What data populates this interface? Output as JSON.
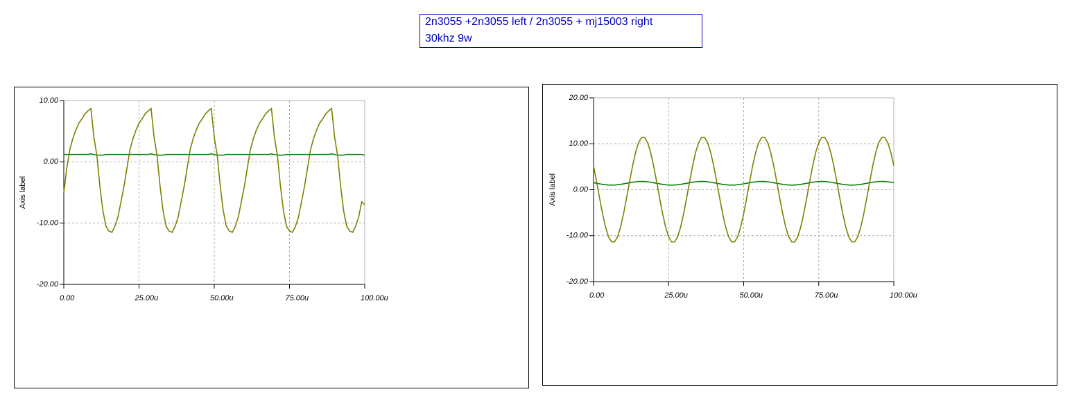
{
  "header": {
    "lines": [
      "2n3055 +2n3055 left / 2n3055 + mj15003 right",
      "30khz 9w"
    ]
  },
  "chart_data": [
    {
      "type": "line",
      "y_label": "Axis label",
      "grid": true,
      "x": [
        0,
        1,
        2,
        3,
        4,
        5,
        6,
        7,
        8,
        9,
        10,
        11,
        12,
        13,
        14,
        15,
        16,
        17,
        18,
        19,
        20,
        21,
        22,
        23,
        24,
        25,
        26,
        27,
        28,
        29,
        30,
        31,
        32,
        33,
        34,
        35,
        36,
        37,
        38,
        39,
        40,
        41,
        42,
        43,
        44,
        45,
        46,
        47,
        48,
        49,
        50,
        51,
        52,
        53,
        54,
        55,
        56,
        57,
        58,
        59,
        60,
        61,
        62,
        63,
        64,
        65,
        66,
        67,
        68,
        69,
        70,
        71,
        72,
        73,
        74,
        75,
        76,
        77,
        78,
        79,
        80,
        81,
        82,
        83,
        84,
        85,
        86,
        87,
        88,
        89,
        90,
        91,
        92,
        93,
        94,
        95,
        96,
        97,
        98,
        99,
        100
      ],
      "series": [
        {
          "color": "#808000",
          "values": [
            -5,
            -1,
            2,
            3.8,
            5.2,
            6.3,
            7,
            7.8,
            8.3,
            8.7,
            4,
            1,
            -4,
            -8,
            -10.5,
            -11.3,
            -11.5,
            -10.5,
            -9,
            -6.5,
            -4,
            -1,
            2,
            3.8,
            5.2,
            6.3,
            7,
            7.8,
            8.3,
            8.7,
            4,
            1,
            -4,
            -8,
            -10.5,
            -11.3,
            -11.5,
            -10.5,
            -9,
            -6.5,
            -4,
            -1,
            2,
            3.8,
            5.2,
            6.3,
            7,
            7.8,
            8.3,
            8.7,
            4,
            1,
            -4,
            -8,
            -10.5,
            -11.3,
            -11.5,
            -10.5,
            -9,
            -6.5,
            -4,
            -1,
            2,
            3.8,
            5.2,
            6.3,
            7,
            7.8,
            8.3,
            8.7,
            4,
            1,
            -4,
            -8,
            -10.5,
            -11.3,
            -11.5,
            -10.5,
            -9,
            -6.5,
            -4,
            -1,
            2,
            3.8,
            5.2,
            6.3,
            7,
            7.8,
            8.3,
            8.7,
            4,
            1,
            -4,
            -8,
            -10.5,
            -11.3,
            -11.5,
            -10.5,
            -9,
            -6.5,
            -7
          ]
        },
        {
          "color": "#008000",
          "values": [
            1.2,
            1.2,
            1.2,
            1.2,
            1.2,
            1.2,
            1.2,
            1.2,
            1.2,
            1.3,
            1.2,
            1.1,
            1.1,
            1.1,
            1.2,
            1.2,
            1.2,
            1.2,
            1.2,
            1.2,
            1.2,
            1.2,
            1.2,
            1.2,
            1.2,
            1.2,
            1.2,
            1.2,
            1.2,
            1.3,
            1.2,
            1.1,
            1.1,
            1.1,
            1.2,
            1.2,
            1.2,
            1.2,
            1.2,
            1.2,
            1.2,
            1.2,
            1.2,
            1.2,
            1.2,
            1.2,
            1.2,
            1.2,
            1.2,
            1.3,
            1.2,
            1.1,
            1.1,
            1.1,
            1.2,
            1.2,
            1.2,
            1.2,
            1.2,
            1.2,
            1.2,
            1.2,
            1.2,
            1.2,
            1.2,
            1.2,
            1.2,
            1.2,
            1.2,
            1.3,
            1.2,
            1.1,
            1.1,
            1.1,
            1.2,
            1.2,
            1.2,
            1.2,
            1.2,
            1.2,
            1.2,
            1.2,
            1.2,
            1.2,
            1.2,
            1.2,
            1.2,
            1.2,
            1.2,
            1.3,
            1.2,
            1.1,
            1.1,
            1.1,
            1.2,
            1.2,
            1.2,
            1.2,
            1.2,
            1.2,
            1.1
          ]
        }
      ],
      "xlim": [
        0,
        100
      ],
      "xticks": [
        {
          "value": 0,
          "label": "0.00"
        },
        {
          "value": 25,
          "label": "25.00u"
        },
        {
          "value": 50,
          "label": "50.00u"
        },
        {
          "value": 75,
          "label": "75.00u"
        },
        {
          "value": 100,
          "label": "100.00u"
        }
      ],
      "ylim": [
        -20,
        10
      ],
      "yticks": [
        {
          "value": -20,
          "label": "-20.00"
        },
        {
          "value": -10,
          "label": "-10.00"
        },
        {
          "value": 0,
          "label": "0.00"
        },
        {
          "value": 10,
          "label": "10.00"
        }
      ]
    },
    {
      "type": "line",
      "y_label": "Axis label",
      "grid": true,
      "x": [
        0,
        1,
        2,
        3,
        4,
        5,
        6,
        7,
        8,
        9,
        10,
        11,
        12,
        13,
        14,
        15,
        16,
        17,
        18,
        19,
        20,
        21,
        22,
        23,
        24,
        25,
        26,
        27,
        28,
        29,
        30,
        31,
        32,
        33,
        34,
        35,
        36,
        37,
        38,
        39,
        40,
        41,
        42,
        43,
        44,
        45,
        46,
        47,
        48,
        49,
        50,
        51,
        52,
        53,
        54,
        55,
        56,
        57,
        58,
        59,
        60,
        61,
        62,
        63,
        64,
        65,
        66,
        67,
        68,
        69,
        70,
        71,
        72,
        73,
        74,
        75,
        76,
        77,
        78,
        79,
        80,
        81,
        82,
        83,
        84,
        85,
        86,
        87,
        88,
        89,
        90,
        91,
        92,
        93,
        94,
        95,
        96,
        97,
        98,
        99,
        100
      ],
      "series": [
        {
          "color": "#808000",
          "values": [
            5.22,
            1.8,
            -1.8,
            -5.22,
            -8.13,
            -10.25,
            -11.36,
            -11.36,
            -10.25,
            -8.13,
            -5.22,
            -1.8,
            1.8,
            5.22,
            8.13,
            10.25,
            11.36,
            11.36,
            10.25,
            8.13,
            5.22,
            1.8,
            -1.8,
            -5.22,
            -8.13,
            -10.25,
            -11.36,
            -11.36,
            -10.25,
            -8.13,
            -5.22,
            -1.8,
            1.8,
            5.22,
            8.13,
            10.25,
            11.36,
            11.36,
            10.25,
            8.13,
            5.22,
            1.8,
            -1.8,
            -5.22,
            -8.13,
            -10.25,
            -11.36,
            -11.36,
            -10.25,
            -8.13,
            -5.22,
            -1.8,
            1.8,
            5.22,
            8.13,
            10.25,
            11.36,
            11.36,
            10.25,
            8.13,
            5.22,
            1.8,
            -1.8,
            -5.22,
            -8.13,
            -10.25,
            -11.36,
            -11.36,
            -10.25,
            -8.13,
            -5.22,
            -1.8,
            1.8,
            5.22,
            8.13,
            10.25,
            11.36,
            11.36,
            10.25,
            8.13,
            5.22,
            1.8,
            -1.8,
            -5.22,
            -8.13,
            -10.25,
            -11.36,
            -11.36,
            -10.25,
            -8.13,
            -5.22,
            -1.8,
            1.8,
            5.22,
            8.13,
            10.25,
            11.36,
            11.36,
            10.25,
            8.13,
            5.22
          ]
        },
        {
          "color": "#008000",
          "values": [
            1.52,
            1.4,
            1.28,
            1.16,
            1.08,
            1.02,
            1,
            1.02,
            1.08,
            1.16,
            1.28,
            1.4,
            1.52,
            1.64,
            1.72,
            1.78,
            1.8,
            1.78,
            1.72,
            1.64,
            1.52,
            1.4,
            1.28,
            1.16,
            1.08,
            1.02,
            1,
            1.02,
            1.08,
            1.16,
            1.28,
            1.4,
            1.52,
            1.64,
            1.72,
            1.78,
            1.8,
            1.78,
            1.72,
            1.64,
            1.52,
            1.4,
            1.28,
            1.16,
            1.08,
            1.02,
            1,
            1.02,
            1.08,
            1.16,
            1.28,
            1.4,
            1.52,
            1.64,
            1.72,
            1.78,
            1.8,
            1.78,
            1.72,
            1.64,
            1.52,
            1.4,
            1.28,
            1.16,
            1.08,
            1.02,
            1,
            1.02,
            1.08,
            1.16,
            1.28,
            1.4,
            1.52,
            1.64,
            1.72,
            1.78,
            1.8,
            1.78,
            1.72,
            1.64,
            1.52,
            1.4,
            1.28,
            1.16,
            1.08,
            1.02,
            1,
            1.02,
            1.08,
            1.16,
            1.28,
            1.4,
            1.52,
            1.64,
            1.72,
            1.78,
            1.8,
            1.78,
            1.72,
            1.64,
            1.52
          ]
        }
      ],
      "xlim": [
        0,
        100
      ],
      "xticks": [
        {
          "value": 0,
          "label": "0.00"
        },
        {
          "value": 25,
          "label": "25.00u"
        },
        {
          "value": 50,
          "label": "50.00u"
        },
        {
          "value": 75,
          "label": "75.00u"
        },
        {
          "value": 100,
          "label": "100.00u"
        }
      ],
      "ylim": [
        -20,
        20
      ],
      "yticks": [
        {
          "value": -20,
          "label": "-20.00"
        },
        {
          "value": -10,
          "label": "-10.00"
        },
        {
          "value": 0,
          "label": "0.00"
        },
        {
          "value": 10,
          "label": "10.00"
        },
        {
          "value": 20,
          "label": "20.00"
        }
      ]
    }
  ]
}
